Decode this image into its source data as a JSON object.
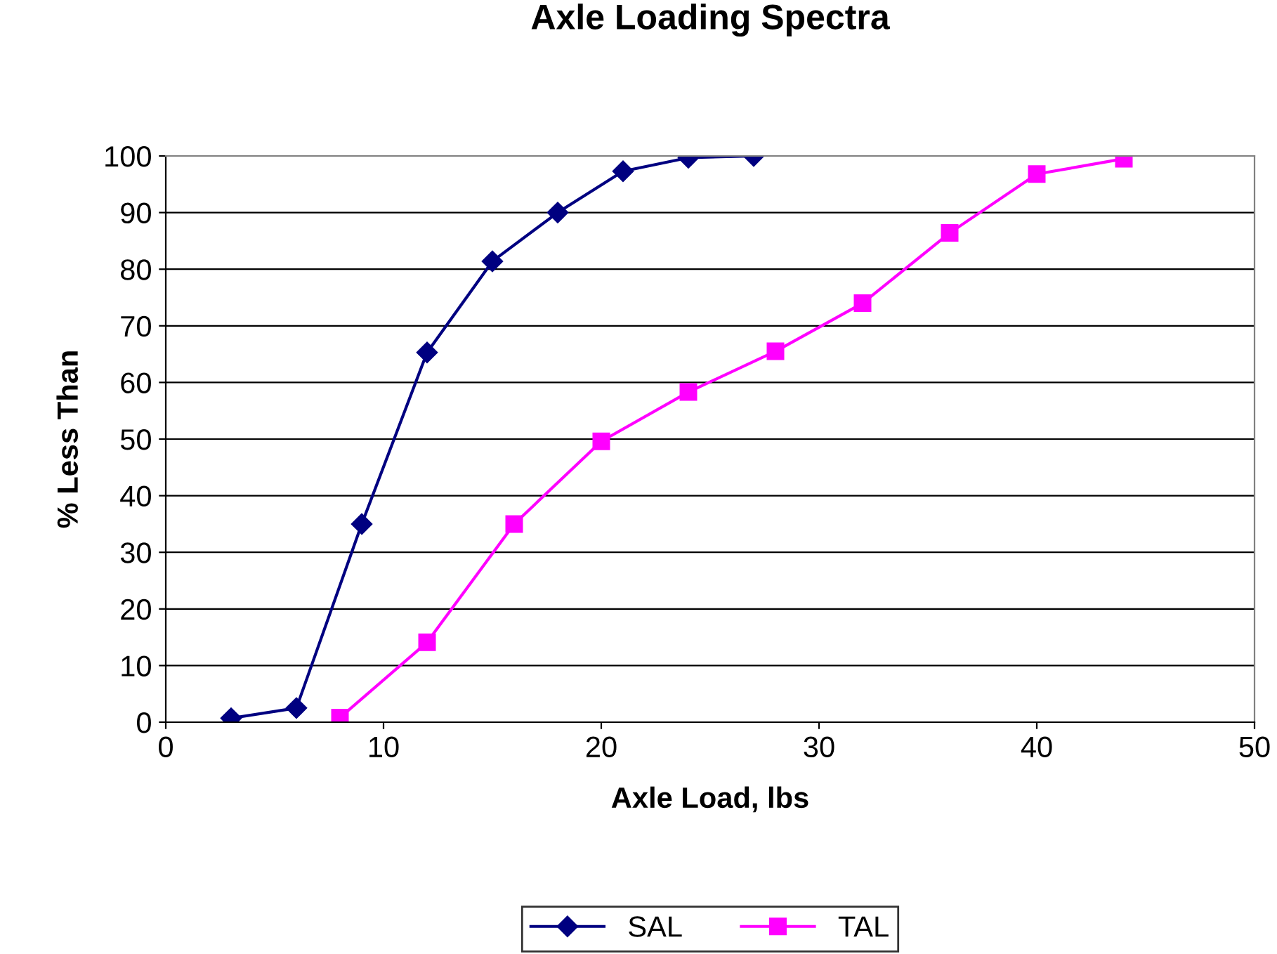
{
  "chart_data": {
    "type": "line",
    "title": "Axle Loading Spectra",
    "xlabel": "Axle Load, lbs",
    "ylabel": "% Less Than",
    "series": [
      {
        "name": "SAL",
        "color": "#000080",
        "marker": "diamond",
        "x": [
          3,
          6,
          9,
          12,
          15,
          18,
          21,
          24,
          27
        ],
        "values": [
          0.7,
          2.5,
          35,
          65.3,
          81.4,
          90,
          97.3,
          99.7,
          100
        ]
      },
      {
        "name": "TAL",
        "color": "#ff00ff",
        "marker": "square",
        "x": [
          8,
          12,
          16,
          20,
          24,
          28,
          32,
          36,
          40,
          44
        ],
        "values": [
          0.8,
          14.1,
          35,
          49.6,
          58.3,
          65.5,
          74,
          86.4,
          96.8,
          99.5
        ]
      }
    ],
    "xlim": [
      0,
      50
    ],
    "xticks": [
      0,
      10,
      20,
      30,
      40,
      50
    ],
    "ylim": [
      0,
      100
    ],
    "yticks": [
      0,
      10,
      20,
      30,
      40,
      50,
      60,
      70,
      80,
      90,
      100
    ],
    "grid": "y",
    "legend": "bottom",
    "line_style": "solid"
  }
}
